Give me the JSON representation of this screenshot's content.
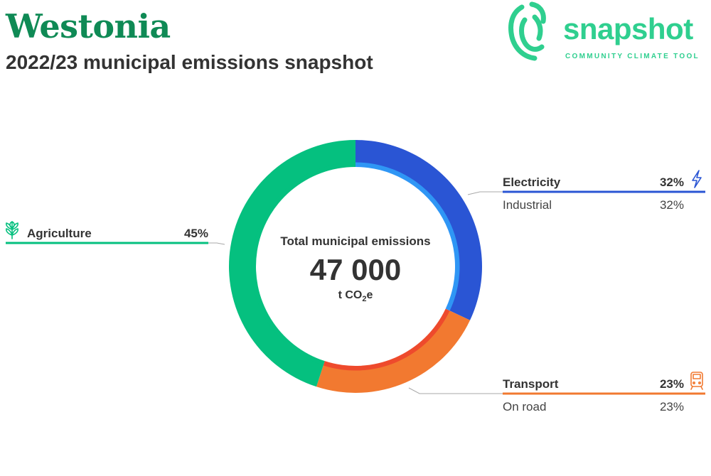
{
  "header": {
    "title": "Westonia",
    "subtitle": "2022/23 municipal emissions snapshot"
  },
  "logo": {
    "word": "snapshot",
    "tagline": "COMMUNITY CLIMATE TOOL",
    "color": "#2fcf8f"
  },
  "center": {
    "caption": "Total municipal emissions",
    "value": "47 000",
    "unit_prefix": "t CO",
    "unit_sub": "2",
    "unit_suffix": "e"
  },
  "chart_data": {
    "type": "pie",
    "donut": true,
    "start_angle_deg": 0,
    "direction": "clockwise",
    "slices": [
      {
        "label": "Electricity",
        "value": 32,
        "display": "32%",
        "color": "#2a55d4",
        "inner_color": "#2f96f5",
        "icon": "lightning-bolt-icon",
        "side": "right",
        "sub": [
          {
            "label": "Industrial",
            "value": 32,
            "display": "32%"
          }
        ]
      },
      {
        "label": "Transport",
        "value": 23,
        "display": "23%",
        "color": "#f27930",
        "inner_color": "#ee4a2c",
        "icon": "train-icon",
        "side": "right",
        "sub": [
          {
            "label": "On road",
            "value": 23,
            "display": "23%"
          }
        ]
      },
      {
        "label": "Agriculture",
        "value": 45,
        "display": "45%",
        "color": "#05c07f",
        "inner_color": "#05c07f",
        "icon": "wheat-icon",
        "side": "left",
        "sub": []
      }
    ]
  }
}
